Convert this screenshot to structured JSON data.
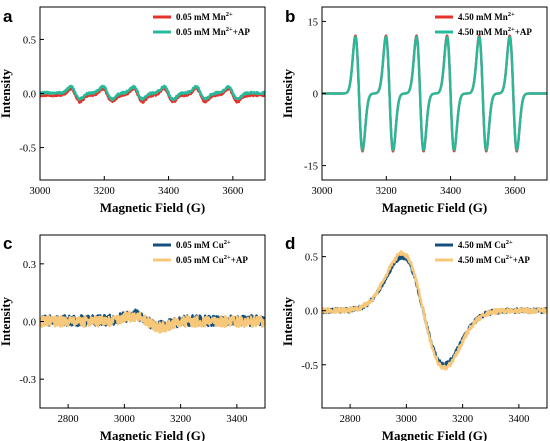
{
  "chart_data": [
    {
      "panel": "a",
      "type": "line",
      "xlabel": "Magnetic Field (G)",
      "ylabel": "Intensity",
      "xlim": [
        3000,
        3700
      ],
      "ylim": [
        -0.8,
        0.8
      ],
      "xticks": [
        3000,
        3200,
        3400,
        3600
      ],
      "xtick_labels": [
        "3000",
        "3200",
        "3400",
        "3600"
      ],
      "yticks": [
        0.5,
        0.0,
        -0.5
      ],
      "ytick_labels": [
        "0.5",
        "0.0",
        "-0.5"
      ],
      "legend_position": "top-right",
      "signal": {
        "kind": "epr",
        "centers": [
          3110,
          3210,
          3305,
          3400,
          3500,
          3600
        ],
        "width": 14,
        "amp": 0.06,
        "noise": 0.01
      },
      "series": [
        {
          "name": "0.05 mM Mn²⁺",
          "legend": [
            "0.05 mM Mn",
            "2+",
            ""
          ],
          "color": "#e4332a",
          "scale": 1.0,
          "offset": -0.015
        },
        {
          "name": "0.05 mM Mn²⁺+AP",
          "legend": [
            "0.05 mM Mn",
            "2+",
            "+AP"
          ],
          "color": "#28b99b",
          "scale": 0.95,
          "offset": 0.005
        }
      ]
    },
    {
      "panel": "b",
      "type": "line",
      "xlabel": "Magnetic Field (G)",
      "ylabel": "Intensity",
      "xlim": [
        3000,
        3700
      ],
      "ylim": [
        -18,
        18
      ],
      "xticks": [
        3000,
        3200,
        3400,
        3600
      ],
      "xtick_labels": [
        "3000",
        "3200",
        "3400",
        "3600"
      ],
      "yticks": [
        15,
        0,
        -15
      ],
      "ytick_labels": [
        "15",
        "0",
        "-15"
      ],
      "legend_position": "top-right",
      "signal": {
        "kind": "epr",
        "centers": [
          3115,
          3210,
          3305,
          3400,
          3500,
          3595
        ],
        "width": 11,
        "amp": 11.8,
        "noise": 0
      },
      "series": [
        {
          "name": "4.50 mM Mn²⁺",
          "legend": [
            "4.50 mM Mn",
            "2+",
            ""
          ],
          "color": "#e4332a",
          "scale": 1.02,
          "offset": 0
        },
        {
          "name": "4.50 mM Mn²⁺+AP",
          "legend": [
            "4.50 mM Mn",
            "2+",
            "+AP"
          ],
          "color": "#28b99b",
          "scale": 1.0,
          "offset": 0
        }
      ]
    },
    {
      "panel": "c",
      "type": "line",
      "xlabel": "Magnetic Field (G)",
      "ylabel": "Intensity",
      "xlim": [
        2700,
        3500
      ],
      "ylim": [
        -0.45,
        0.45
      ],
      "xticks": [
        2800,
        3000,
        3200,
        3400
      ],
      "xtick_labels": [
        "2800",
        "3000",
        "3200",
        "3400"
      ],
      "yticks": [
        0.3,
        0.0,
        -0.3
      ],
      "ytick_labels": [
        "0.3",
        "0.0",
        "-0.3"
      ],
      "legend_position": "top-right",
      "signal": {
        "kind": "broad",
        "center": 3080,
        "width": 45,
        "amp": 0.03,
        "noise": 0.028
      },
      "series": [
        {
          "name": "0.05 mM Cu²⁺",
          "legend": [
            "0.05 mM Cu",
            "2+",
            ""
          ],
          "color": "#154f7d",
          "scale": 1.0,
          "offset": 0.005
        },
        {
          "name": "0.05 mM Cu²⁺+AP",
          "legend": [
            "0.05 mM Cu",
            "2+",
            "+AP"
          ],
          "color": "#f7c77a",
          "scale": 1.0,
          "offset": 0.0
        }
      ]
    },
    {
      "panel": "d",
      "type": "line",
      "xlabel": "Magnetic Field (G)",
      "ylabel": "Intensity",
      "xlim": [
        2700,
        3500
      ],
      "ylim": [
        -0.9,
        0.7
      ],
      "xticks": [
        2800,
        3000,
        3200,
        3400
      ],
      "xtick_labels": [
        "2800",
        "3000",
        "3200",
        "3400"
      ],
      "yticks": [
        0.5,
        0.0,
        -0.5
      ],
      "ytick_labels": [
        "0.5",
        "0.0",
        "-0.5"
      ],
      "legend_position": "top-right",
      "signal": {
        "kind": "broad",
        "center": 3060,
        "width": 75,
        "amp": 0.5,
        "noise": 0.022
      },
      "series": [
        {
          "name": "4.50 mM Cu²⁺",
          "legend": [
            "4.50 mM Cu",
            "2+",
            ""
          ],
          "color": "#154f7d",
          "scale": 1.0,
          "offset": 0.0
        },
        {
          "name": "4.50 mM Cu²⁺+AP",
          "legend": [
            "4.50 mM Cu",
            "2+",
            "+AP"
          ],
          "color": "#f7c77a",
          "scale": 1.06,
          "offset": 0.0
        }
      ]
    }
  ]
}
